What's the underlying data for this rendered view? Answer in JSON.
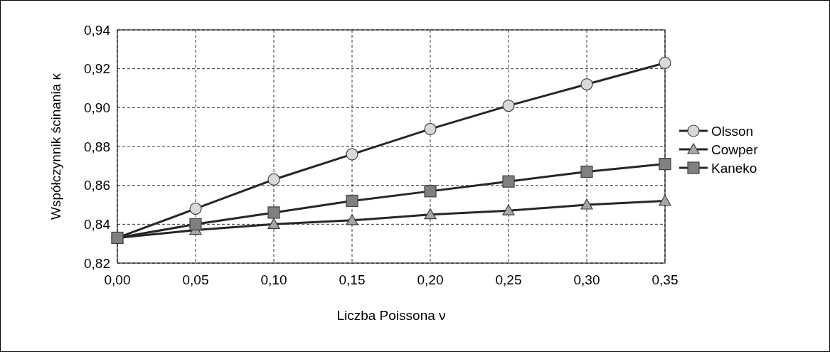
{
  "chart_data": {
    "type": "line",
    "xlabel": "Liczba Poissona ν",
    "ylabel": "Współczynnik ścinania κ",
    "x": [
      0,
      0.05,
      0.1,
      0.15,
      0.2,
      0.25,
      0.3,
      0.35
    ],
    "series": [
      {
        "name": "Olsson",
        "color": "#d9d9d9",
        "marker": "circle",
        "values": [
          0.833,
          0.848,
          0.863,
          0.876,
          0.889,
          0.901,
          0.912,
          0.923
        ]
      },
      {
        "name": "Cowper",
        "color": "#a6a6a6",
        "marker": "triangle",
        "values": [
          0.833,
          0.837,
          0.84,
          0.842,
          0.845,
          0.847,
          0.85,
          0.852
        ]
      },
      {
        "name": "Kaneko",
        "color": "#808080",
        "marker": "square",
        "values": [
          0.833,
          0.84,
          0.846,
          0.852,
          0.857,
          0.862,
          0.867,
          0.871
        ]
      }
    ],
    "xlim": [
      0,
      0.35
    ],
    "ylim": [
      0.82,
      0.94
    ],
    "xticks": [
      {
        "value": 0,
        "label": "0,00"
      },
      {
        "value": 0.05,
        "label": "0,05"
      },
      {
        "value": 0.1,
        "label": "0,10"
      },
      {
        "value": 0.15,
        "label": "0,15"
      },
      {
        "value": 0.2,
        "label": "0,20"
      },
      {
        "value": 0.25,
        "label": "0,25"
      },
      {
        "value": 0.3,
        "label": "0,30"
      },
      {
        "value": 0.35,
        "label": "0,35"
      }
    ],
    "yticks": [
      {
        "value": 0.82,
        "label": "0,82"
      },
      {
        "value": 0.84,
        "label": "0,84"
      },
      {
        "value": 0.86,
        "label": "0,86"
      },
      {
        "value": 0.88,
        "label": "0,88"
      },
      {
        "value": 0.9,
        "label": "0,90"
      },
      {
        "value": 0.92,
        "label": "0,92"
      },
      {
        "value": 0.94,
        "label": "0,94"
      }
    ],
    "grid": true,
    "legend": "right",
    "line_style": "solid"
  }
}
